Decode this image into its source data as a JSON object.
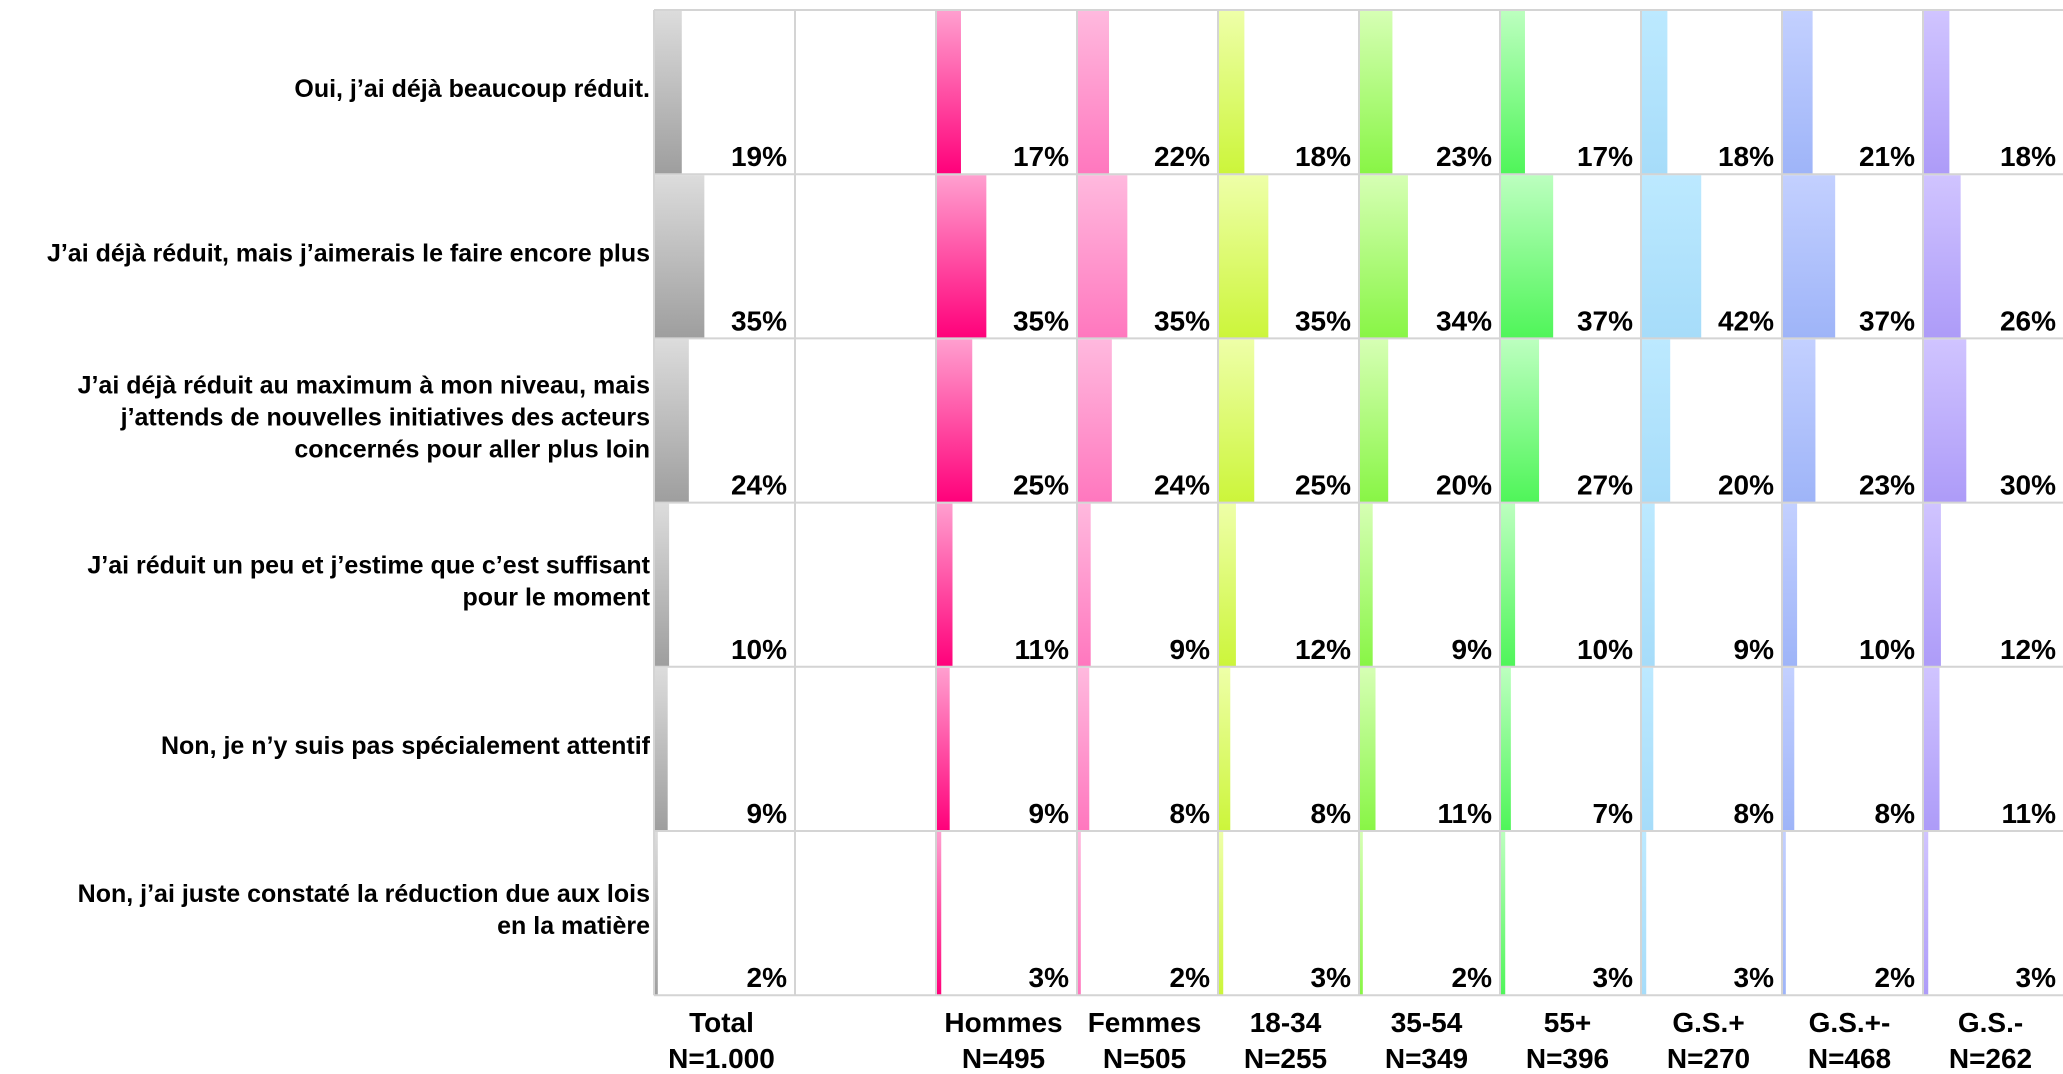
{
  "chart_data": {
    "type": "bar",
    "orientation": "grouped-matrix",
    "categories": [
      "Oui, j’ai déjà beaucoup réduit.",
      "J’ai déjà réduit, mais j’aimerais le faire encore plus",
      "J’ai déjà réduit au maximum à mon niveau, mais j’attends de nouvelles initiatives des acteurs concernés pour aller plus loin",
      "J’ai réduit un peu et j’estime que c’est suffisant pour le moment",
      "Non, je n’y suis pas spécialement attentif",
      "Non, j’ai juste constaté la réduction due aux lois en la matière"
    ],
    "category_lines": [
      [
        "Oui, j’ai déjà beaucoup réduit."
      ],
      [
        "J’ai déjà réduit, mais j’aimerais le faire encore plus"
      ],
      [
        "J’ai déjà réduit au maximum à mon niveau, mais",
        "j’attends de nouvelles initiatives des acteurs",
        "concernés pour aller plus loin"
      ],
      [
        "J’ai réduit un peu et j’estime que c’est suffisant",
        "pour le moment"
      ],
      [
        "Non, je n’y suis pas spécialement attentif"
      ],
      [
        "Non, j’ai juste constaté la réduction due aux lois",
        "en la matière"
      ]
    ],
    "unit": "%",
    "xlim": [
      0,
      100
    ],
    "grid": true,
    "series": [
      {
        "name": "Total",
        "base": "N=1.000",
        "color_light": "#dcdcdc",
        "color_dark": "#9e9e9e",
        "values": [
          19,
          35,
          24,
          10,
          9,
          2
        ]
      },
      {
        "name": "Hommes",
        "base": "N=495",
        "color_light": "#ff9fcf",
        "color_dark": "#ff007a",
        "values": [
          17,
          35,
          25,
          11,
          9,
          3
        ]
      },
      {
        "name": "Femmes",
        "base": "N=505",
        "color_light": "#ffb9de",
        "color_dark": "#ff77be",
        "values": [
          22,
          35,
          24,
          9,
          8,
          2
        ]
      },
      {
        "name": "18-34",
        "base": "N=255",
        "color_light": "#eeffa8",
        "color_dark": "#ccf53a",
        "values": [
          18,
          35,
          25,
          12,
          8,
          3
        ]
      },
      {
        "name": "35-54",
        "base": "N=349",
        "color_light": "#d6ffb4",
        "color_dark": "#88f545",
        "values": [
          23,
          34,
          20,
          9,
          11,
          2
        ]
      },
      {
        "name": "55+",
        "base": "N=396",
        "color_light": "#bcffbf",
        "color_dark": "#4ff559",
        "values": [
          17,
          37,
          27,
          10,
          7,
          3
        ]
      },
      {
        "name": "G.S.+",
        "base": "N=270",
        "color_light": "#bce9ff",
        "color_dark": "#a6dcf9",
        "values": [
          18,
          42,
          20,
          9,
          8,
          3
        ]
      },
      {
        "name": "G.S.+-",
        "base": "N=468",
        "color_light": "#c3d0ff",
        "color_dark": "#9eb4f8",
        "values": [
          21,
          37,
          23,
          10,
          8,
          2
        ]
      },
      {
        "name": "G.S.-",
        "base": "N=262",
        "color_light": "#d0c4ff",
        "color_dark": "#ad9bf8",
        "values": [
          18,
          26,
          30,
          12,
          11,
          3
        ]
      }
    ]
  }
}
